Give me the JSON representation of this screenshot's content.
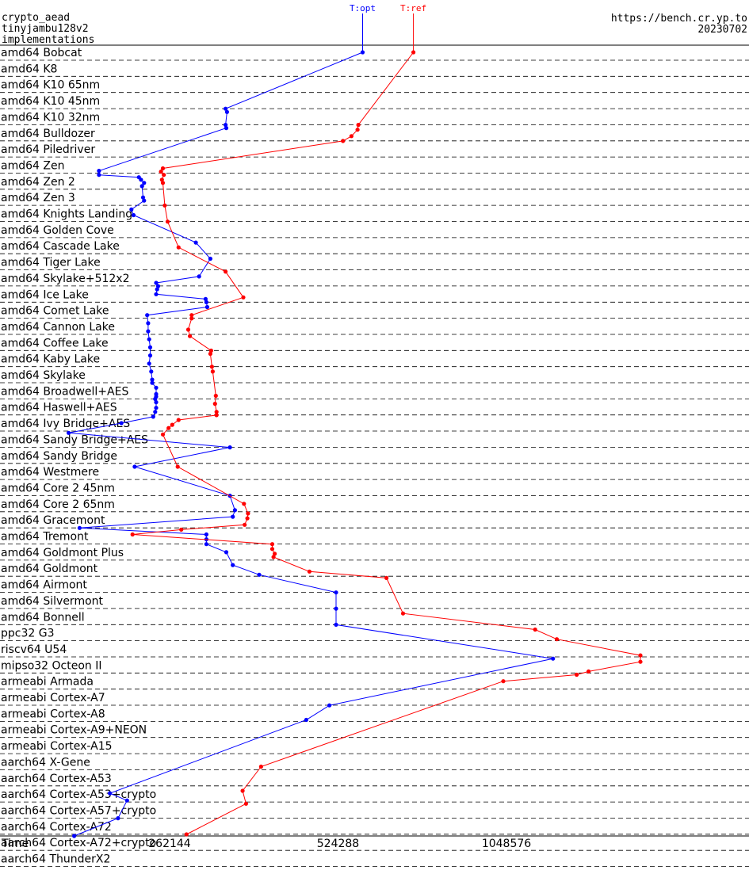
{
  "header": {
    "line1": "crypto_aead",
    "line2": "tinyjambu128v2",
    "line3": "implementations",
    "url": "https://bench.cr.yp.to",
    "date": "20230702"
  },
  "chart_data": {
    "type": "line",
    "scale": "log2",
    "xlabel": "Time",
    "xticks": [
      262144,
      524288,
      1048576
    ],
    "xrange": [
      131072,
      2097152
    ],
    "categories": [
      "amd64 Bobcat",
      "amd64 K8",
      "amd64 K10 65nm",
      "amd64 K10 45nm",
      "amd64 K10 32nm",
      "amd64 Bulldozer",
      "amd64 Piledriver",
      "amd64 Zen",
      "amd64 Zen 2",
      "amd64 Zen 3",
      "amd64 Knights Landing",
      "amd64 Golden Cove",
      "amd64 Cascade Lake",
      "amd64 Tiger Lake",
      "amd64 Skylake+512x2",
      "amd64 Ice Lake",
      "amd64 Comet Lake",
      "amd64 Cannon Lake",
      "amd64 Coffee Lake",
      "amd64 Kaby Lake",
      "amd64 Skylake",
      "amd64 Broadwell+AES",
      "amd64 Haswell+AES",
      "amd64 Ivy Bridge+AES",
      "amd64 Sandy Bridge+AES",
      "amd64 Sandy Bridge",
      "amd64 Westmere",
      "amd64 Core 2 45nm",
      "amd64 Core 2 65nm",
      "amd64 Gracemont",
      "amd64 Tremont",
      "amd64 Goldmont Plus",
      "amd64 Goldmont",
      "amd64 Airmont",
      "amd64 Silvermont",
      "amd64 Bonnell",
      "ppc32 G3",
      "riscv64 U54",
      "mipso32 Octeon II",
      "armeabi Armada",
      "armeabi Cortex-A7",
      "armeabi Cortex-A8",
      "armeabi Cortex-A9+NEON",
      "armeabi Cortex-A15",
      "aarch64 X-Gene",
      "aarch64 Cortex-A53",
      "aarch64 Cortex-A53+crypto",
      "aarch64 Cortex-A57+crypto",
      "aarch64 Cortex-A72",
      "aarch64 Cortex-A72+crypto",
      "aarch64 ThunderX2"
    ],
    "series": [
      {
        "name": "T:opt",
        "color": "#0000ff",
        "points": [
          [
            0,
            580000
          ],
          [
            3.5,
            330000
          ],
          [
            3.7,
            332000
          ],
          [
            4.5,
            330000
          ],
          [
            4.7,
            331000
          ],
          [
            7.35,
            196000
          ],
          [
            7.6,
            196000
          ],
          [
            7.75,
            231000
          ],
          [
            7.9,
            233000
          ],
          [
            8.1,
            236000
          ],
          [
            8.3,
            234000
          ],
          [
            9,
            235000
          ],
          [
            9.2,
            236000
          ],
          [
            9.75,
            224000
          ],
          [
            10.1,
            226000
          ],
          [
            11.8,
            292000
          ],
          [
            12.8,
            310000
          ],
          [
            13.9,
            296000
          ],
          [
            14.3,
            248000
          ],
          [
            14.5,
            250000
          ],
          [
            14.7,
            249000
          ],
          [
            15,
            248000
          ],
          [
            15.3,
            304000
          ],
          [
            15.5,
            305000
          ],
          [
            15.8,
            306000
          ],
          [
            16.3,
            239000
          ],
          [
            16.8,
            240000
          ],
          [
            17.3,
            240000
          ],
          [
            17.8,
            241000
          ],
          [
            18.3,
            242000
          ],
          [
            18.8,
            242000
          ],
          [
            19.3,
            241000
          ],
          [
            19.8,
            243000
          ],
          [
            20.3,
            244000
          ],
          [
            20.5,
            244000
          ],
          [
            20.8,
            248000
          ],
          [
            21.2,
            248000
          ],
          [
            21.35,
            248000
          ],
          [
            21.5,
            247000
          ],
          [
            21.7,
            248000
          ],
          [
            22.05,
            248000
          ],
          [
            22.3,
            247000
          ],
          [
            22.6,
            245000
          ],
          [
            23,
            215000
          ],
          [
            23.6,
            173000
          ],
          [
            24.5,
            336000
          ],
          [
            25.7,
            227000
          ],
          [
            27.5,
            336000
          ],
          [
            28.4,
            343000
          ],
          [
            28.8,
            340000
          ],
          [
            29.5,
            181000
          ],
          [
            29.9,
            305000
          ],
          [
            30.2,
            305000
          ],
          [
            30.5,
            305000
          ],
          [
            31,
            331000
          ],
          [
            31.8,
            340000
          ],
          [
            32.4,
            379000
          ],
          [
            33.5,
            520000
          ],
          [
            34.5,
            520000
          ],
          [
            35.5,
            520000
          ],
          [
            37.6,
            1270000
          ],
          [
            40.5,
            506000
          ],
          [
            41.4,
            460000
          ],
          [
            45.95,
            205000
          ],
          [
            46.4,
            220000
          ],
          [
            47.5,
            212000
          ],
          [
            48.6,
            177000
          ]
        ]
      },
      {
        "name": "T:ref",
        "color": "#ff0000",
        "points": [
          [
            0,
            715000
          ],
          [
            4.5,
            570000
          ],
          [
            4.8,
            568000
          ],
          [
            5.2,
            554000
          ],
          [
            5.5,
            535000
          ],
          [
            7.2,
            255000
          ],
          [
            7.4,
            253000
          ],
          [
            7.6,
            256000
          ],
          [
            7.9,
            254000
          ],
          [
            8.1,
            255000
          ],
          [
            9.5,
            257000
          ],
          [
            10.5,
            260000
          ],
          [
            12.1,
            272000
          ],
          [
            13.6,
            330000
          ],
          [
            15.2,
            355000
          ],
          [
            16.3,
            287000
          ],
          [
            16.5,
            287000
          ],
          [
            17.2,
            283000
          ],
          [
            17.6,
            285000
          ],
          [
            18.5,
            311000
          ],
          [
            18.7,
            310000
          ],
          [
            19.5,
            312000
          ],
          [
            19.8,
            313000
          ],
          [
            21.3,
            317000
          ],
          [
            21.8,
            316000
          ],
          [
            22.3,
            318000
          ],
          [
            22.5,
            318000
          ],
          [
            22.8,
            272000
          ],
          [
            23.1,
            265000
          ],
          [
            23.3,
            261000
          ],
          [
            23.7,
            255000
          ],
          [
            25.7,
            271000
          ],
          [
            28,
            356000
          ],
          [
            28.6,
            362000
          ],
          [
            28.9,
            361000
          ],
          [
            29.3,
            357000
          ],
          [
            29.6,
            275000
          ],
          [
            29.9,
            225000
          ],
          [
            30.5,
            400000
          ],
          [
            30.8,
            400000
          ],
          [
            31.1,
            404000
          ],
          [
            31.3,
            402000
          ],
          [
            32.2,
            466000
          ],
          [
            32.6,
            640000
          ],
          [
            34.8,
            685000
          ],
          [
            35.8,
            1180000
          ],
          [
            36.4,
            1290000
          ],
          [
            37.4,
            1820000
          ],
          [
            37.8,
            1820000
          ],
          [
            38.4,
            1470000
          ],
          [
            38.6,
            1400000
          ],
          [
            39.0,
            1035000
          ],
          [
            44.3,
            382000
          ],
          [
            45.8,
            354000
          ],
          [
            46.6,
            359000
          ],
          [
            48.5,
            281000
          ]
        ]
      }
    ]
  }
}
